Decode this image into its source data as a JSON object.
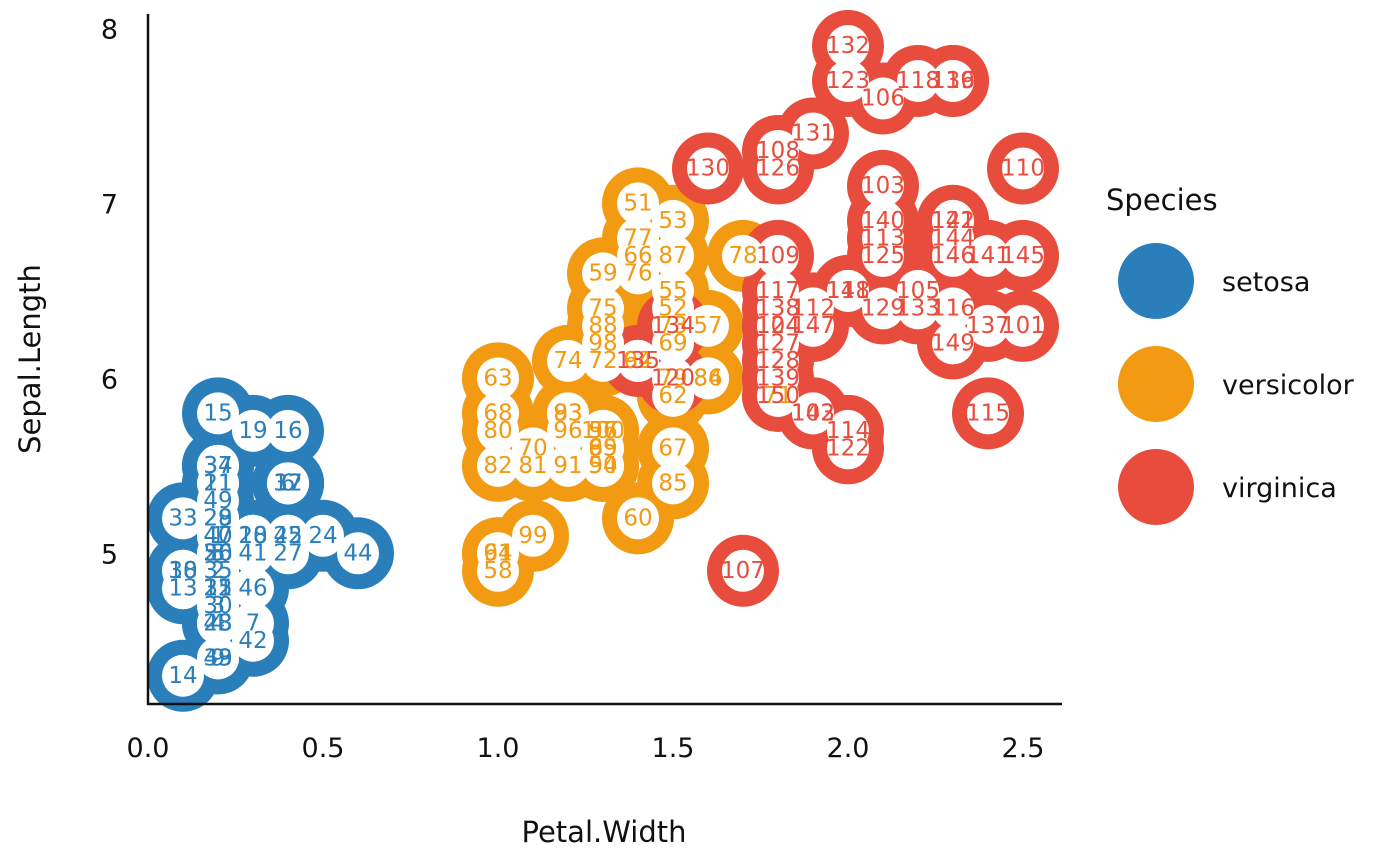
{
  "chart_data": {
    "type": "scatter",
    "xlabel": "Petal.Width",
    "ylabel": "Sepal.Length",
    "xlim": [
      0,
      2.6
    ],
    "ylim": [
      4.15,
      8.1
    ],
    "xticks": [
      "0.0",
      "0.5",
      "1.0",
      "1.5",
      "2.0",
      "2.5"
    ],
    "yticks": [
      "5",
      "6",
      "7",
      "8"
    ],
    "grid": false,
    "legend": {
      "title": "Species",
      "placement": "right",
      "entries": [
        "setosa",
        "versicolor",
        "virginica"
      ]
    },
    "colors": {
      "setosa": "#2a7fba",
      "versicolor": "#f19a12",
      "virginica": "#e74c3c"
    },
    "series": [
      {
        "name": "setosa",
        "points": [
          [
            1,
            0.2,
            5.1
          ],
          [
            2,
            0.2,
            4.9
          ],
          [
            3,
            0.2,
            4.7
          ],
          [
            4,
            0.2,
            4.6
          ],
          [
            5,
            0.2,
            5.0
          ],
          [
            6,
            0.4,
            5.4
          ],
          [
            7,
            0.3,
            4.6
          ],
          [
            8,
            0.2,
            5.0
          ],
          [
            9,
            0.2,
            4.4
          ],
          [
            10,
            0.1,
            4.9
          ],
          [
            11,
            0.2,
            5.4
          ],
          [
            12,
            0.2,
            4.8
          ],
          [
            13,
            0.1,
            4.8
          ],
          [
            14,
            0.1,
            4.3
          ],
          [
            15,
            0.2,
            5.8
          ],
          [
            16,
            0.4,
            5.7
          ],
          [
            17,
            0.4,
            5.4
          ],
          [
            18,
            0.3,
            5.1
          ],
          [
            19,
            0.3,
            5.7
          ],
          [
            20,
            0.3,
            5.1
          ],
          [
            21,
            0.2,
            5.4
          ],
          [
            22,
            0.4,
            5.1
          ],
          [
            23,
            0.2,
            4.6
          ],
          [
            24,
            0.5,
            5.1
          ],
          [
            25,
            0.2,
            4.8
          ],
          [
            26,
            0.2,
            5.0
          ],
          [
            27,
            0.4,
            5.0
          ],
          [
            28,
            0.2,
            5.2
          ],
          [
            29,
            0.2,
            5.2
          ],
          [
            30,
            0.2,
            4.7
          ],
          [
            31,
            0.2,
            4.8
          ],
          [
            32,
            0.4,
            5.4
          ],
          [
            33,
            0.1,
            5.2
          ],
          [
            34,
            0.2,
            5.5
          ],
          [
            35,
            0.2,
            4.9
          ],
          [
            36,
            0.2,
            5.0
          ],
          [
            37,
            0.2,
            5.5
          ],
          [
            38,
            0.1,
            4.9
          ],
          [
            39,
            0.2,
            4.4
          ],
          [
            40,
            0.2,
            5.1
          ],
          [
            41,
            0.3,
            5.0
          ],
          [
            42,
            0.3,
            4.5
          ],
          [
            43,
            0.2,
            4.4
          ],
          [
            44,
            0.6,
            5.0
          ],
          [
            45,
            0.4,
            5.1
          ],
          [
            46,
            0.3,
            4.8
          ],
          [
            47,
            0.2,
            5.1
          ],
          [
            48,
            0.2,
            4.6
          ],
          [
            49,
            0.2,
            5.3
          ],
          [
            50,
            0.2,
            5.0
          ]
        ]
      },
      {
        "name": "versicolor",
        "points": [
          [
            51,
            1.4,
            7.0
          ],
          [
            52,
            1.5,
            6.4
          ],
          [
            53,
            1.5,
            6.9
          ],
          [
            54,
            1.3,
            5.5
          ],
          [
            55,
            1.5,
            6.5
          ],
          [
            56,
            1.3,
            5.7
          ],
          [
            57,
            1.6,
            6.3
          ],
          [
            58,
            1.0,
            4.9
          ],
          [
            59,
            1.3,
            6.6
          ],
          [
            60,
            1.4,
            5.2
          ],
          [
            61,
            1.0,
            5.0
          ],
          [
            62,
            1.5,
            5.9
          ],
          [
            63,
            1.0,
            6.0
          ],
          [
            64,
            1.4,
            6.1
          ],
          [
            65,
            1.3,
            5.6
          ],
          [
            66,
            1.4,
            6.7
          ],
          [
            67,
            1.5,
            5.6
          ],
          [
            68,
            1.0,
            5.8
          ],
          [
            69,
            1.5,
            6.2
          ],
          [
            70,
            1.1,
            5.6
          ],
          [
            71,
            1.8,
            5.9
          ],
          [
            72,
            1.3,
            6.1
          ],
          [
            73,
            1.5,
            6.3
          ],
          [
            74,
            1.2,
            6.1
          ],
          [
            75,
            1.3,
            6.4
          ],
          [
            76,
            1.4,
            6.6
          ],
          [
            77,
            1.4,
            6.8
          ],
          [
            78,
            1.7,
            6.7
          ],
          [
            79,
            1.5,
            6.0
          ],
          [
            80,
            1.0,
            5.7
          ],
          [
            81,
            1.1,
            5.5
          ],
          [
            82,
            1.0,
            5.5
          ],
          [
            83,
            1.2,
            5.8
          ],
          [
            84,
            1.6,
            6.0
          ],
          [
            85,
            1.5,
            5.4
          ],
          [
            86,
            1.6,
            6.0
          ],
          [
            87,
            1.5,
            6.7
          ],
          [
            88,
            1.3,
            6.3
          ],
          [
            89,
            1.3,
            5.6
          ],
          [
            90,
            1.3,
            5.5
          ],
          [
            91,
            1.2,
            5.5
          ],
          [
            92,
            1.4,
            6.1
          ],
          [
            93,
            1.2,
            5.8
          ],
          [
            94,
            1.0,
            5.0
          ],
          [
            95,
            1.3,
            5.6
          ],
          [
            96,
            1.2,
            5.7
          ],
          [
            97,
            1.3,
            5.7
          ],
          [
            98,
            1.3,
            6.2
          ],
          [
            99,
            1.1,
            5.1
          ],
          [
            100,
            1.3,
            5.7
          ]
        ]
      },
      {
        "name": "virginica",
        "points": [
          [
            101,
            2.5,
            6.3
          ],
          [
            102,
            1.9,
            5.8
          ],
          [
            103,
            2.1,
            7.1
          ],
          [
            104,
            1.8,
            6.3
          ],
          [
            105,
            2.2,
            6.5
          ],
          [
            106,
            2.1,
            7.6
          ],
          [
            107,
            1.7,
            4.9
          ],
          [
            108,
            1.8,
            7.3
          ],
          [
            109,
            1.8,
            6.7
          ],
          [
            110,
            2.5,
            7.2
          ],
          [
            111,
            2.0,
            6.5
          ],
          [
            112,
            1.9,
            6.4
          ],
          [
            113,
            2.1,
            6.8
          ],
          [
            114,
            2.0,
            5.7
          ],
          [
            115,
            2.4,
            5.8
          ],
          [
            116,
            2.3,
            6.4
          ],
          [
            117,
            1.8,
            6.5
          ],
          [
            118,
            2.2,
            7.7
          ],
          [
            119,
            2.3,
            7.7
          ],
          [
            120,
            1.5,
            6.0
          ],
          [
            121,
            2.3,
            6.9
          ],
          [
            122,
            2.0,
            5.6
          ],
          [
            123,
            2.0,
            7.7
          ],
          [
            124,
            1.8,
            6.3
          ],
          [
            125,
            2.1,
            6.7
          ],
          [
            126,
            1.8,
            7.2
          ],
          [
            127,
            1.8,
            6.2
          ],
          [
            128,
            1.8,
            6.1
          ],
          [
            129,
            2.1,
            6.4
          ],
          [
            130,
            1.6,
            7.2
          ],
          [
            131,
            1.9,
            7.4
          ],
          [
            132,
            2.0,
            7.9
          ],
          [
            133,
            2.2,
            6.4
          ],
          [
            134,
            1.5,
            6.3
          ],
          [
            135,
            1.4,
            6.1
          ],
          [
            136,
            2.3,
            7.7
          ],
          [
            137,
            2.4,
            6.3
          ],
          [
            138,
            1.8,
            6.4
          ],
          [
            139,
            1.8,
            6.0
          ],
          [
            140,
            2.1,
            6.9
          ],
          [
            141,
            2.4,
            6.7
          ],
          [
            142,
            2.3,
            6.9
          ],
          [
            143,
            1.9,
            5.8
          ],
          [
            144,
            2.3,
            6.8
          ],
          [
            145,
            2.5,
            6.7
          ],
          [
            146,
            2.3,
            6.7
          ],
          [
            147,
            1.9,
            6.3
          ],
          [
            148,
            2.0,
            6.5
          ],
          [
            149,
            2.3,
            6.2
          ],
          [
            150,
            1.8,
            5.9
          ]
        ]
      }
    ]
  }
}
